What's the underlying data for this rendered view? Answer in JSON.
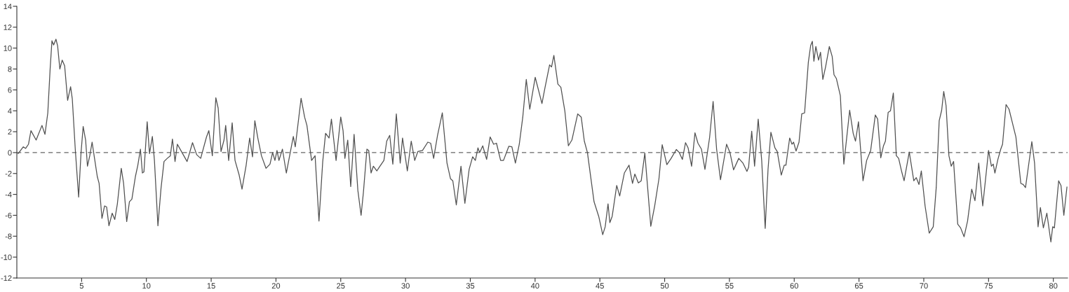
{
  "chart_data": {
    "type": "line",
    "xlim": [
      0,
      81.1
    ],
    "ylim": [
      -12,
      14
    ],
    "xticks": [
      5,
      10,
      15,
      20,
      25,
      30,
      35,
      40,
      45,
      50,
      55,
      60,
      65,
      70,
      75,
      80
    ],
    "yticks": [
      -12,
      -10,
      -8,
      -6,
      -4,
      -2,
      0,
      2,
      4,
      6,
      8,
      10,
      12,
      14
    ],
    "grid": false,
    "legend": false,
    "marker": "none",
    "line_style": "solid",
    "ref_lines": [
      {
        "axis": "y",
        "value": 0,
        "color": "#666666",
        "line_style": "dashed"
      }
    ],
    "series": [
      {
        "color": "#505050",
        "x": [
          0.1,
          0.5,
          0.68,
          0.9,
          1.09,
          1.49,
          1.94,
          2.17,
          2.39,
          2.57,
          2.71,
          2.84,
          3.02,
          3.15,
          3.32,
          3.5,
          3.69,
          3.92,
          4.15,
          4.28,
          4.51,
          4.77,
          4.95,
          5.12,
          5.31,
          5.45,
          5.63,
          5.81,
          5.99,
          6.21,
          6.35,
          6.57,
          6.77,
          6.93,
          7.11,
          7.36,
          7.56,
          7.76,
          8.06,
          8.24,
          8.48,
          8.69,
          8.88,
          9.15,
          9.34,
          9.54,
          9.69,
          9.81,
          10.06,
          10.24,
          10.46,
          10.62,
          10.89,
          11.13,
          11.36,
          11.61,
          11.85,
          12.01,
          12.21,
          12.39,
          12.75,
          13.14,
          13.56,
          13.88,
          14.19,
          14.64,
          14.82,
          15.09,
          15.36,
          15.54,
          15.76,
          15.99,
          16.12,
          16.35,
          16.62,
          16.84,
          17.16,
          17.38,
          17.7,
          17.97,
          18.19,
          18.37,
          18.6,
          18.88,
          19.23,
          19.54,
          19.74,
          19.92,
          20.08,
          20.23,
          20.5,
          20.8,
          21.04,
          21.34,
          21.49,
          21.94,
          22.21,
          22.39,
          22.75,
          23.02,
          23.32,
          23.61,
          23.83,
          24.1,
          24.28,
          24.64,
          25.0,
          25.18,
          25.32,
          25.54,
          25.77,
          26.03,
          26.32,
          26.57,
          26.75,
          27.02,
          27.16,
          27.34,
          27.52,
          27.79,
          27.97,
          28.33,
          28.55,
          28.78,
          29.02,
          29.29,
          29.59,
          29.77,
          30.14,
          30.44,
          30.71,
          30.95,
          31.31,
          31.72,
          31.94,
          32.17,
          32.47,
          32.84,
          33.2,
          33.47,
          33.65,
          33.92,
          34.28,
          34.58,
          34.91,
          35.18,
          35.39,
          35.59,
          35.72,
          35.96,
          36.26,
          36.53,
          36.8,
          37.02,
          37.34,
          37.56,
          37.97,
          38.21,
          38.48,
          38.78,
          39.05,
          39.32,
          39.59,
          40.01,
          40.53,
          40.77,
          41.12,
          41.27,
          41.45,
          41.76,
          41.99,
          42.3,
          42.57,
          42.84,
          43.29,
          43.56,
          43.8,
          44.04,
          44.55,
          44.91,
          45.22,
          45.41,
          45.63,
          45.77,
          45.95,
          46.3,
          46.53,
          46.89,
          47.25,
          47.52,
          47.7,
          47.97,
          48.19,
          48.47,
          48.93,
          49.23,
          49.56,
          49.81,
          50.17,
          50.5,
          50.9,
          51.13,
          51.37,
          51.61,
          51.81,
          52.08,
          52.34,
          52.57,
          52.84,
          53.11,
          53.47,
          53.74,
          54.01,
          54.31,
          54.78,
          55.04,
          55.32,
          55.72,
          56.04,
          56.35,
          56.48,
          56.72,
          56.94,
          57.22,
          57.49,
          57.76,
          57.98,
          58.2,
          58.51,
          58.69,
          59.0,
          59.23,
          59.36,
          59.65,
          59.83,
          59.95,
          60.14,
          60.37,
          60.58,
          60.8,
          61.09,
          61.27,
          61.4,
          61.52,
          61.67,
          61.88,
          62.03,
          62.21,
          62.42,
          62.71,
          62.93,
          63.07,
          63.25,
          63.56,
          63.83,
          64.28,
          64.55,
          64.73,
          64.96,
          65.31,
          65.59,
          65.9,
          66.26,
          66.44,
          66.68,
          66.89,
          67.04,
          67.25,
          67.43,
          67.65,
          67.88,
          68.06,
          68.3,
          68.48,
          68.88,
          69.23,
          69.42,
          69.63,
          69.81,
          70.1,
          70.42,
          70.73,
          70.96,
          71.19,
          71.38,
          71.54,
          71.72,
          71.94,
          72.12,
          72.3,
          72.62,
          72.84,
          73.11,
          73.38,
          73.7,
          73.95,
          74.24,
          74.55,
          75.0,
          75.22,
          75.36,
          75.49,
          75.72,
          75.94,
          76.08,
          76.35,
          76.58,
          76.8,
          77.11,
          77.49,
          77.67,
          77.85,
          78.03,
          78.34,
          78.55,
          78.82,
          79.0,
          79.23,
          79.5,
          79.81,
          79.95,
          80.08,
          80.41,
          80.59,
          80.81,
          81.05
        ],
        "values": [
          -0.1,
          0.55,
          0.4,
          0.8,
          2.1,
          1.2,
          2.6,
          1.75,
          3.8,
          8.0,
          10.7,
          10.3,
          10.85,
          10.2,
          8.0,
          8.85,
          8.3,
          5.0,
          6.3,
          5.15,
          0.33,
          -4.25,
          -0.1,
          2.5,
          1.2,
          -1.3,
          -0.3,
          1.0,
          -0.5,
          -2.3,
          -2.95,
          -6.3,
          -5.1,
          -5.2,
          -7.0,
          -5.8,
          -6.4,
          -4.9,
          -1.5,
          -2.95,
          -6.6,
          -4.7,
          -4.45,
          -2.3,
          -1.2,
          0.33,
          -1.95,
          -1.85,
          2.95,
          -0.1,
          1.55,
          -0.75,
          -7.0,
          -3.4,
          -0.85,
          -0.55,
          -0.3,
          1.3,
          -0.85,
          0.8,
          0.0,
          -0.85,
          0.95,
          -0.2,
          -0.55,
          1.5,
          2.1,
          -0.3,
          5.25,
          4.25,
          0.1,
          1.2,
          2.6,
          -0.75,
          2.85,
          -0.75,
          -2.15,
          -3.5,
          -1.2,
          1.4,
          -0.4,
          3.05,
          1.4,
          -0.3,
          -1.5,
          -1.1,
          0.0,
          -0.75,
          0.2,
          -0.75,
          0.33,
          -1.95,
          -0.4,
          1.55,
          0.55,
          5.2,
          3.4,
          2.6,
          -0.75,
          -0.3,
          -6.55,
          -0.85,
          1.85,
          1.4,
          3.2,
          -0.75,
          3.4,
          2.1,
          -0.55,
          1.2,
          -3.25,
          1.75,
          -3.6,
          -6.0,
          -3.8,
          0.33,
          0.2,
          -1.95,
          -1.3,
          -1.75,
          -1.4,
          -0.75,
          1.1,
          1.65,
          -1.1,
          3.7,
          -1.0,
          1.4,
          -1.75,
          1.1,
          -0.75,
          0.1,
          0.2,
          1.0,
          0.9,
          -0.55,
          1.65,
          3.8,
          -1.0,
          -2.5,
          -2.7,
          -5.0,
          -1.3,
          -4.85,
          -1.6,
          -0.4,
          -0.75,
          0.45,
          0.0,
          0.65,
          -0.65,
          1.5,
          0.8,
          0.9,
          -0.75,
          -0.75,
          0.6,
          0.55,
          -1.0,
          0.8,
          3.4,
          7.0,
          4.15,
          7.2,
          4.7,
          6.25,
          8.4,
          8.2,
          9.3,
          6.55,
          6.25,
          3.95,
          0.65,
          1.2,
          3.7,
          3.4,
          1.1,
          0.0,
          -4.7,
          -6.1,
          -7.85,
          -7.1,
          -4.9,
          -6.7,
          -6.1,
          -3.15,
          -4.15,
          -1.95,
          -1.2,
          -2.95,
          -2.05,
          -2.9,
          -2.7,
          -0.05,
          -7.05,
          -5.1,
          -2.5,
          0.75,
          -1.15,
          -0.55,
          0.3,
          0.0,
          -0.65,
          0.95,
          0.45,
          -1.3,
          1.9,
          0.9,
          0.33,
          -1.6,
          1.45,
          4.9,
          0.33,
          -2.6,
          0.8,
          0.0,
          -1.65,
          -0.55,
          -1.0,
          -1.8,
          -1.4,
          2.05,
          -1.3,
          3.2,
          -0.75,
          -7.25,
          -1.6,
          1.95,
          0.45,
          0.1,
          -2.15,
          -1.2,
          -1.2,
          1.4,
          0.8,
          1.0,
          0.15,
          1.0,
          3.7,
          3.8,
          8.65,
          10.25,
          10.65,
          8.75,
          10.15,
          8.85,
          9.6,
          7.0,
          8.2,
          10.15,
          9.2,
          7.45,
          7.1,
          5.45,
          -1.1,
          4.05,
          1.85,
          1.1,
          2.95,
          -2.7,
          -0.75,
          0.2,
          3.6,
          3.2,
          -0.5,
          0.65,
          1.1,
          3.85,
          4.0,
          5.7,
          -0.3,
          -0.55,
          -1.85,
          -2.7,
          0.05,
          -2.7,
          -2.4,
          -3.05,
          -1.75,
          -5.1,
          -7.7,
          -7.1,
          -3.35,
          3.05,
          4.05,
          5.85,
          4.5,
          -0.3,
          -1.3,
          -0.85,
          -6.85,
          -7.2,
          -8.05,
          -6.55,
          -3.5,
          -4.6,
          -1.0,
          -5.1,
          0.2,
          -1.3,
          -1.1,
          -1.95,
          -0.65,
          0.33,
          0.8,
          4.6,
          4.15,
          3.05,
          1.5,
          -2.95,
          -3.05,
          -3.35,
          -1.75,
          1.05,
          -1.0,
          -7.1,
          -5.25,
          -7.2,
          -5.8,
          -8.55,
          -7.1,
          -7.2,
          -2.7,
          -3.15,
          -6.0,
          -3.3
        ]
      }
    ]
  }
}
